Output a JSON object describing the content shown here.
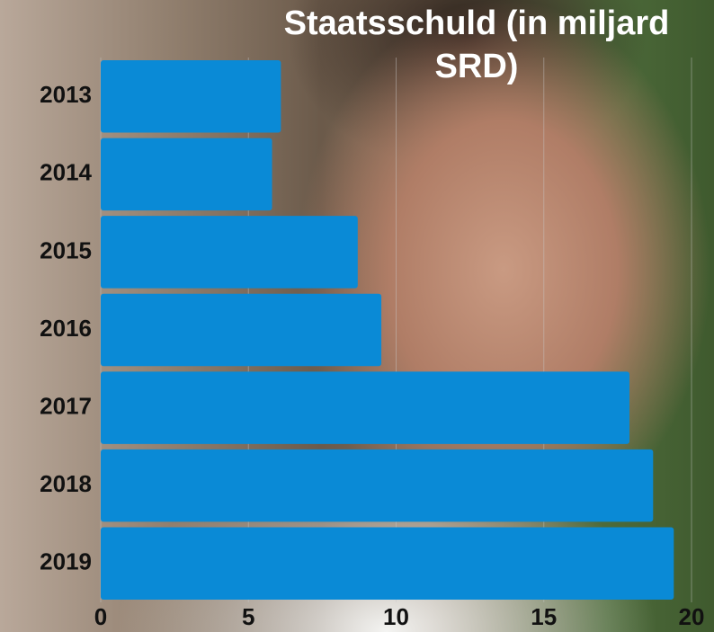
{
  "chart_data": {
    "type": "bar",
    "orientation": "horizontal",
    "title": "Staatsschuld (in miljard SRD)",
    "categories": [
      "2013",
      "2014",
      "2015",
      "2016",
      "2017",
      "2018",
      "2019"
    ],
    "values": [
      6.1,
      5.8,
      8.7,
      9.5,
      17.9,
      18.7,
      19.4
    ],
    "color": "#0a8ad6",
    "xlim": [
      0,
      20
    ],
    "xticks": [
      0,
      5,
      10,
      15,
      20
    ],
    "grid": true
  }
}
